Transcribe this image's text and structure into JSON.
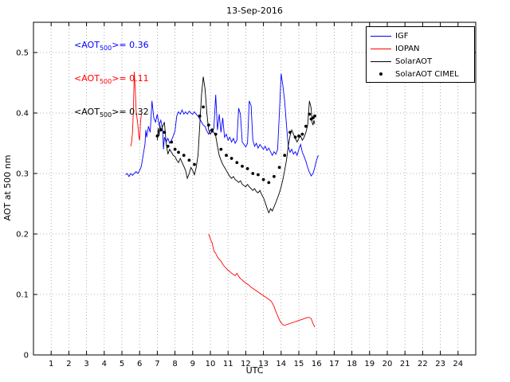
{
  "chart_data": {
    "type": "line",
    "title": "13-Sep-2016",
    "xlabel": "UTC",
    "ylabel": "AOT at 500 nm",
    "xlim": [
      0,
      25
    ],
    "ylim": [
      0,
      0.55
    ],
    "xticks": [
      1,
      2,
      3,
      4,
      5,
      6,
      7,
      8,
      9,
      10,
      11,
      12,
      13,
      14,
      15,
      16,
      17,
      18,
      19,
      20,
      21,
      22,
      23,
      24
    ],
    "yticks": [
      0,
      0.1,
      0.2,
      0.3,
      0.4,
      0.5
    ],
    "ytick_labels": [
      "0",
      "0.1",
      "0.2",
      "0.3",
      "0.4",
      "0.5"
    ],
    "grid": true,
    "grid_style": "dotted",
    "legend_position": "top-right",
    "series": [
      {
        "name": "IGF",
        "color": "#0000ff",
        "style": "line",
        "segments": [
          {
            "x": [
              5.2,
              5.3,
              5.4,
              5.5,
              5.6,
              5.7,
              5.8,
              5.9,
              6.0,
              6.1,
              6.2,
              6.3,
              6.35,
              6.4,
              6.5,
              6.6,
              6.7,
              6.8,
              6.9,
              7.0,
              7.1,
              7.2,
              7.3,
              7.35,
              7.4,
              7.5,
              7.6,
              7.7,
              7.8,
              7.9,
              8.0,
              8.1,
              8.2,
              8.3,
              8.4,
              8.5,
              8.6,
              8.7,
              8.8,
              8.9,
              9.0,
              9.1,
              9.2,
              9.3,
              9.4,
              9.5,
              9.6,
              9.7,
              9.8,
              9.9,
              10.0,
              10.1,
              10.2,
              10.3,
              10.4,
              10.5,
              10.6,
              10.7,
              10.8,
              10.9,
              11.0,
              11.1,
              11.2,
              11.3,
              11.4,
              11.5,
              11.6,
              11.7,
              11.8,
              11.9,
              12.0,
              12.1,
              12.2,
              12.3,
              12.4,
              12.5,
              12.6,
              12.7,
              12.8,
              12.9,
              13.0,
              13.1,
              13.2,
              13.3,
              13.4,
              13.5,
              13.6,
              13.7,
              13.8,
              13.9,
              14.0,
              14.1,
              14.2,
              14.3,
              14.4,
              14.5,
              14.6,
              14.7,
              14.8,
              14.9,
              15.0,
              15.1,
              15.2,
              15.3,
              15.4,
              15.5,
              15.6,
              15.7,
              15.8,
              15.9,
              16.0,
              16.1
            ],
            "y": [
              0.298,
              0.3,
              0.295,
              0.3,
              0.297,
              0.3,
              0.303,
              0.3,
              0.305,
              0.312,
              0.33,
              0.348,
              0.372,
              0.36,
              0.378,
              0.368,
              0.42,
              0.392,
              0.385,
              0.398,
              0.38,
              0.388,
              0.372,
              0.34,
              0.36,
              0.352,
              0.358,
              0.35,
              0.355,
              0.362,
              0.37,
              0.395,
              0.402,
              0.398,
              0.405,
              0.398,
              0.402,
              0.398,
              0.403,
              0.4,
              0.398,
              0.402,
              0.398,
              0.395,
              0.39,
              0.385,
              0.38,
              0.378,
              0.37,
              0.365,
              0.372,
              0.368,
              0.375,
              0.43,
              0.372,
              0.398,
              0.368,
              0.392,
              0.36,
              0.365,
              0.355,
              0.36,
              0.352,
              0.358,
              0.35,
              0.355,
              0.408,
              0.398,
              0.352,
              0.348,
              0.344,
              0.35,
              0.42,
              0.412,
              0.355,
              0.345,
              0.35,
              0.342,
              0.348,
              0.344,
              0.34,
              0.345,
              0.338,
              0.342,
              0.336,
              0.33,
              0.336,
              0.332,
              0.34,
              0.4,
              0.465,
              0.445,
              0.42,
              0.38,
              0.345,
              0.335,
              0.34,
              0.332,
              0.336,
              0.33,
              0.34,
              0.348,
              0.335,
              0.328,
              0.32,
              0.31,
              0.302,
              0.296,
              0.3,
              0.31,
              0.322,
              0.33
            ]
          }
        ]
      },
      {
        "name": "IOPAN",
        "color": "#ff0000",
        "style": "line",
        "segments": [
          {
            "x": [
              5.5,
              5.55,
              5.6,
              5.65,
              5.7,
              5.75,
              5.8,
              5.85,
              5.9,
              5.95,
              6.0,
              6.05,
              6.1
            ],
            "y": [
              0.345,
              0.352,
              0.368,
              0.405,
              0.468,
              0.44,
              0.405,
              0.392,
              0.38,
              0.362,
              0.355,
              0.385,
              0.398
            ]
          },
          {
            "x": [
              9.9,
              10.0,
              10.1,
              10.2,
              10.3,
              10.4,
              10.5,
              10.6,
              10.7,
              10.8,
              10.9,
              11.0,
              11.1,
              11.2,
              11.3,
              11.4,
              11.5,
              11.6,
              11.7,
              11.8,
              11.9,
              12.0,
              12.1,
              12.2,
              12.3,
              12.4,
              12.5,
              12.6,
              12.7,
              12.8,
              12.9,
              13.0,
              13.1,
              13.2,
              13.3,
              13.4,
              13.5,
              13.6,
              13.7,
              13.8,
              13.9,
              14.0,
              14.1,
              14.2,
              14.3,
              14.4,
              14.5,
              14.6,
              14.7,
              14.8,
              14.9,
              15.0,
              15.1,
              15.2,
              15.3,
              15.4,
              15.5,
              15.6,
              15.7,
              15.8,
              15.9
            ],
            "y": [
              0.2,
              0.192,
              0.185,
              0.172,
              0.168,
              0.162,
              0.158,
              0.155,
              0.15,
              0.146,
              0.143,
              0.14,
              0.138,
              0.135,
              0.133,
              0.131,
              0.135,
              0.13,
              0.126,
              0.124,
              0.121,
              0.119,
              0.117,
              0.115,
              0.112,
              0.11,
              0.108,
              0.106,
              0.104,
              0.102,
              0.1,
              0.098,
              0.096,
              0.094,
              0.092,
              0.09,
              0.086,
              0.08,
              0.072,
              0.065,
              0.058,
              0.053,
              0.05,
              0.049,
              0.05,
              0.051,
              0.052,
              0.053,
              0.054,
              0.055,
              0.056,
              0.057,
              0.058,
              0.059,
              0.06,
              0.061,
              0.062,
              0.062,
              0.06,
              0.052,
              0.046
            ]
          }
        ]
      },
      {
        "name": "SolarAOT",
        "color": "#000000",
        "style": "line",
        "segments": [
          {
            "x": [
              7.0,
              7.05,
              7.1,
              7.15,
              7.2,
              7.3,
              7.4,
              7.5,
              7.6,
              7.7,
              7.8,
              7.9,
              8.0,
              8.1,
              8.2,
              8.3,
              8.4,
              8.5,
              8.6,
              8.7,
              8.8,
              8.9,
              9.0,
              9.1,
              9.2,
              9.3,
              9.4,
              9.5,
              9.6,
              9.7,
              9.8,
              9.9,
              10.0,
              10.1,
              10.2,
              10.3,
              10.4,
              10.5,
              10.6,
              10.7,
              10.8,
              10.9,
              11.0,
              11.1,
              11.2,
              11.3,
              11.4,
              11.5,
              11.6,
              11.7,
              11.8,
              11.9,
              12.0,
              12.1,
              12.2,
              12.3,
              12.4,
              12.5,
              12.6,
              12.7,
              12.8,
              12.9,
              13.0,
              13.1,
              13.2,
              13.3,
              13.35,
              13.4,
              13.5,
              13.6,
              13.7,
              13.8,
              13.9,
              14.0,
              14.1,
              14.2,
              14.3,
              14.4,
              14.5,
              14.6,
              14.7,
              14.8,
              14.9,
              15.0,
              15.1,
              15.2,
              15.3,
              15.4,
              15.5,
              15.6,
              15.7,
              15.75,
              15.8,
              15.85,
              15.9
            ],
            "y": [
              0.355,
              0.375,
              0.362,
              0.38,
              0.37,
              0.378,
              0.385,
              0.35,
              0.332,
              0.34,
              0.335,
              0.33,
              0.328,
              0.322,
              0.318,
              0.325,
              0.318,
              0.312,
              0.305,
              0.292,
              0.3,
              0.31,
              0.305,
              0.298,
              0.31,
              0.33,
              0.38,
              0.43,
              0.46,
              0.44,
              0.4,
              0.372,
              0.365,
              0.37,
              0.368,
              0.362,
              0.345,
              0.33,
              0.322,
              0.315,
              0.31,
              0.305,
              0.3,
              0.295,
              0.292,
              0.295,
              0.29,
              0.288,
              0.285,
              0.288,
              0.282,
              0.28,
              0.278,
              0.282,
              0.278,
              0.275,
              0.272,
              0.275,
              0.27,
              0.268,
              0.272,
              0.265,
              0.26,
              0.252,
              0.243,
              0.235,
              0.238,
              0.242,
              0.238,
              0.245,
              0.252,
              0.26,
              0.268,
              0.278,
              0.29,
              0.305,
              0.322,
              0.345,
              0.362,
              0.372,
              0.365,
              0.358,
              0.352,
              0.358,
              0.362,
              0.355,
              0.36,
              0.368,
              0.38,
              0.42,
              0.408,
              0.385,
              0.38,
              0.388,
              0.382
            ]
          }
        ]
      },
      {
        "name": "SolarAOT CIMEL",
        "color": "#000000",
        "style": "dots",
        "segments": [
          {
            "x": [
              7.0,
              7.2,
              7.4,
              7.6,
              7.8,
              8.0,
              8.2,
              8.5,
              8.8,
              9.1,
              9.4,
              9.6,
              9.9,
              10.1,
              10.3,
              10.6,
              10.9,
              11.2,
              11.5,
              11.8,
              12.1,
              12.4,
              12.7,
              13.0,
              13.3,
              13.6,
              13.9,
              14.2,
              14.5,
              14.8,
              15.0,
              15.2,
              15.4,
              15.6,
              15.7,
              15.8,
              15.9
            ],
            "y": [
              0.362,
              0.372,
              0.368,
              0.345,
              0.352,
              0.34,
              0.335,
              0.33,
              0.322,
              0.315,
              0.395,
              0.41,
              0.38,
              0.372,
              0.365,
              0.34,
              0.33,
              0.325,
              0.318,
              0.312,
              0.308,
              0.3,
              0.298,
              0.29,
              0.285,
              0.295,
              0.31,
              0.33,
              0.368,
              0.36,
              0.362,
              0.365,
              0.378,
              0.398,
              0.39,
              0.392,
              0.395
            ]
          }
        ]
      }
    ],
    "annotations": [
      {
        "prefix": "<AOT",
        "sub": "500",
        "suffix": ">= 0.36",
        "color": "#0000ff",
        "x": 2.3,
        "y": 0.51
      },
      {
        "prefix": "<AOT",
        "sub": "500",
        "suffix": ">= 0.11",
        "color": "#ff0000",
        "x": 2.3,
        "y": 0.455
      },
      {
        "prefix": "<AOT",
        "sub": "500",
        "suffix": ">= 0.32",
        "color": "#000000",
        "x": 2.3,
        "y": 0.4
      }
    ]
  }
}
